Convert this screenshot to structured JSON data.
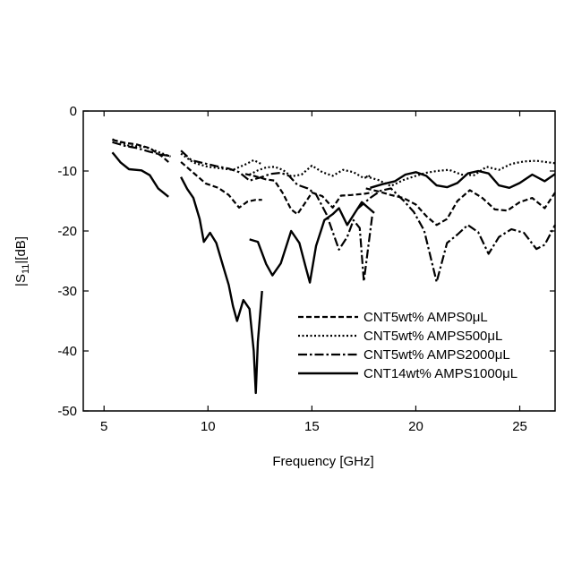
{
  "chart_data": {
    "type": "line",
    "xlabel": "Frequency [GHz]",
    "ylabel_parts": {
      "pre": "|S",
      "sub": "11",
      "post": "|[dB]"
    },
    "xlim": [
      4,
      26.7
    ],
    "ylim": [
      -50,
      0
    ],
    "xticks": [
      5,
      10,
      15,
      20,
      25
    ],
    "yticks": [
      0,
      -10,
      -20,
      -30,
      -40,
      -50
    ],
    "grid": false,
    "legend_position": "bottom-right",
    "series": [
      {
        "name": "CNT5wt% AMPS0μL",
        "style": "dashed",
        "segments": [
          [
            [
              5.4,
              -4.8
            ],
            [
              6.0,
              -5.3
            ],
            [
              6.6,
              -5.6
            ],
            [
              7.2,
              -6.2
            ],
            [
              7.8,
              -7.6
            ],
            [
              8.2,
              -8.8
            ]
          ],
          [
            [
              8.7,
              -8.5
            ],
            [
              9.3,
              -10.3
            ],
            [
              9.9,
              -12.1
            ],
            [
              10.5,
              -12.8
            ],
            [
              11.0,
              -14.0
            ],
            [
              11.5,
              -16.1
            ],
            [
              11.9,
              -15.1
            ],
            [
              12.3,
              -14.8
            ],
            [
              12.6,
              -14.8
            ]
          ],
          [
            [
              11.8,
              -10.5
            ],
            [
              12.3,
              -10.9
            ],
            [
              12.8,
              -11.4
            ],
            [
              13.2,
              -11.6
            ],
            [
              13.6,
              -13.7
            ],
            [
              14.0,
              -16.4
            ],
            [
              14.3,
              -17.2
            ],
            [
              14.6,
              -15.7
            ],
            [
              15.0,
              -13.6
            ],
            [
              15.5,
              -14.2
            ],
            [
              16.0,
              -16.1
            ],
            [
              16.4,
              -14.1
            ],
            [
              16.9,
              -14.0
            ],
            [
              17.5,
              -13.8
            ],
            [
              17.9,
              -13.6
            ]
          ],
          [
            [
              17.6,
              -12.9
            ],
            [
              18.2,
              -13.4
            ],
            [
              18.8,
              -14.0
            ],
            [
              19.4,
              -14.5
            ],
            [
              20.0,
              -15.6
            ],
            [
              20.5,
              -17.5
            ],
            [
              21.0,
              -19.0
            ],
            [
              21.5,
              -18.0
            ],
            [
              22.0,
              -15.0
            ],
            [
              22.6,
              -13.2
            ],
            [
              23.2,
              -14.5
            ],
            [
              23.8,
              -16.4
            ],
            [
              24.4,
              -16.6
            ],
            [
              25.0,
              -15.2
            ],
            [
              25.6,
              -14.5
            ],
            [
              26.2,
              -16.2
            ],
            [
              26.7,
              -13.6
            ]
          ]
        ]
      },
      {
        "name": "CNT5wt% AMPS500μL",
        "style": "dotted",
        "segments": [
          [
            [
              5.4,
              -4.7
            ],
            [
              6.2,
              -5.8
            ],
            [
              7.0,
              -6.0
            ],
            [
              7.6,
              -6.8
            ],
            [
              8.2,
              -7.6
            ]
          ],
          [
            [
              8.7,
              -7.1
            ],
            [
              9.3,
              -8.6
            ],
            [
              10.0,
              -9.3
            ],
            [
              10.7,
              -9.6
            ],
            [
              11.2,
              -9.8
            ],
            [
              11.8,
              -8.9
            ],
            [
              12.2,
              -8.2
            ],
            [
              12.6,
              -8.9
            ]
          ],
          [
            [
              12.0,
              -10.6
            ],
            [
              12.4,
              -9.9
            ],
            [
              12.8,
              -9.4
            ],
            [
              13.2,
              -9.3
            ],
            [
              13.6,
              -9.8
            ],
            [
              14.0,
              -10.9
            ],
            [
              14.5,
              -10.6
            ],
            [
              15.0,
              -9.1
            ],
            [
              15.5,
              -10.2
            ],
            [
              16.0,
              -10.8
            ],
            [
              16.5,
              -9.8
            ],
            [
              17.0,
              -10.2
            ],
            [
              17.5,
              -11.2
            ],
            [
              17.8,
              -10.8
            ]
          ],
          [
            [
              17.6,
              -10.9
            ],
            [
              18.2,
              -11.5
            ],
            [
              18.8,
              -12.5
            ],
            [
              19.4,
              -11.5
            ],
            [
              20.0,
              -10.8
            ],
            [
              20.5,
              -10.3
            ],
            [
              21.0,
              -10.0
            ],
            [
              21.6,
              -9.8
            ],
            [
              22.2,
              -10.6
            ],
            [
              22.8,
              -10.7
            ],
            [
              23.4,
              -9.3
            ],
            [
              24.0,
              -9.8
            ],
            [
              24.6,
              -8.8
            ],
            [
              25.2,
              -8.4
            ],
            [
              25.8,
              -8.3
            ],
            [
              26.7,
              -8.7
            ]
          ]
        ]
      },
      {
        "name": "CNT5wt% AMPS2000μL",
        "style": "dashdot",
        "segments": [
          [
            [
              5.4,
              -5.2
            ],
            [
              6.0,
              -5.8
            ],
            [
              6.6,
              -6.2
            ],
            [
              7.2,
              -6.8
            ],
            [
              7.8,
              -7.3
            ],
            [
              8.2,
              -7.5
            ]
          ],
          [
            [
              8.7,
              -6.6
            ],
            [
              9.2,
              -8.2
            ],
            [
              9.8,
              -8.7
            ],
            [
              10.4,
              -9.2
            ],
            [
              11.0,
              -9.6
            ],
            [
              11.5,
              -10.2
            ],
            [
              12.0,
              -11.6
            ],
            [
              12.5,
              -11.1
            ],
            [
              13.0,
              -10.5
            ],
            [
              13.5,
              -10.3
            ],
            [
              13.9,
              -10.8
            ],
            [
              14.3,
              -12.3
            ],
            [
              14.8,
              -12.9
            ],
            [
              15.2,
              -13.9
            ],
            [
              15.7,
              -17.2
            ],
            [
              16.3,
              -23.1
            ],
            [
              16.7,
              -21.0
            ],
            [
              17.0,
              -18.2
            ],
            [
              17.3,
              -19.5
            ],
            [
              17.5,
              -28.4
            ],
            [
              17.9,
              -17.5
            ]
          ],
          [
            [
              17.2,
              -16.3
            ],
            [
              17.8,
              -14.5
            ],
            [
              18.3,
              -13.3
            ],
            [
              18.8,
              -12.9
            ],
            [
              19.4,
              -14.9
            ],
            [
              19.9,
              -16.8
            ],
            [
              20.4,
              -19.9
            ],
            [
              21.0,
              -28.5
            ],
            [
              21.5,
              -22.0
            ],
            [
              22.0,
              -20.6
            ],
            [
              22.5,
              -19.0
            ],
            [
              23.0,
              -20.2
            ],
            [
              23.5,
              -23.8
            ],
            [
              24.0,
              -21.0
            ],
            [
              24.6,
              -19.7
            ],
            [
              25.2,
              -20.3
            ],
            [
              25.8,
              -23.0
            ],
            [
              26.2,
              -22.3
            ],
            [
              26.7,
              -19.0
            ]
          ]
        ]
      },
      {
        "name": "CNT14wt% AMPS1000μL",
        "style": "solid",
        "segments": [
          [
            [
              5.4,
              -6.9
            ],
            [
              5.8,
              -8.6
            ],
            [
              6.2,
              -9.7
            ],
            [
              6.8,
              -9.9
            ],
            [
              7.2,
              -10.7
            ],
            [
              7.6,
              -12.9
            ],
            [
              8.1,
              -14.3
            ]
          ],
          [
            [
              8.7,
              -11.0
            ],
            [
              9.0,
              -13.0
            ],
            [
              9.3,
              -14.5
            ],
            [
              9.6,
              -18.0
            ],
            [
              9.8,
              -21.8
            ],
            [
              10.1,
              -20.3
            ],
            [
              10.4,
              -22.0
            ],
            [
              10.7,
              -25.5
            ],
            [
              11.0,
              -29.0
            ],
            [
              11.2,
              -32.5
            ],
            [
              11.4,
              -35.0
            ],
            [
              11.7,
              -31.5
            ],
            [
              12.0,
              -33.0
            ],
            [
              12.2,
              -40.0
            ],
            [
              12.3,
              -47.0
            ],
            [
              12.4,
              -38.5
            ],
            [
              12.6,
              -30.0
            ]
          ],
          [
            [
              12.0,
              -21.4
            ],
            [
              12.4,
              -21.8
            ],
            [
              12.8,
              -25.5
            ],
            [
              13.1,
              -27.4
            ],
            [
              13.5,
              -25.4
            ],
            [
              14.0,
              -20.0
            ],
            [
              14.4,
              -22.0
            ],
            [
              14.7,
              -26.0
            ],
            [
              14.9,
              -28.6
            ],
            [
              15.2,
              -22.5
            ],
            [
              15.6,
              -18.2
            ],
            [
              16.0,
              -17.2
            ],
            [
              16.3,
              -16.2
            ],
            [
              16.7,
              -19.0
            ],
            [
              17.1,
              -16.8
            ],
            [
              17.4,
              -15.2
            ],
            [
              17.8,
              -16.4
            ],
            [
              18.0,
              -17.0
            ]
          ],
          [
            [
              17.8,
              -12.8
            ],
            [
              18.4,
              -12.2
            ],
            [
              19.0,
              -11.7
            ],
            [
              19.5,
              -10.6
            ],
            [
              20.0,
              -10.2
            ],
            [
              20.5,
              -10.8
            ],
            [
              21.0,
              -12.4
            ],
            [
              21.5,
              -12.7
            ],
            [
              22.0,
              -12.0
            ],
            [
              22.5,
              -10.4
            ],
            [
              23.0,
              -10.0
            ],
            [
              23.5,
              -10.4
            ],
            [
              24.0,
              -12.4
            ],
            [
              24.5,
              -12.8
            ],
            [
              25.0,
              -12.0
            ],
            [
              25.6,
              -10.6
            ],
            [
              26.2,
              -11.7
            ],
            [
              26.7,
              -10.5
            ]
          ]
        ]
      }
    ]
  }
}
